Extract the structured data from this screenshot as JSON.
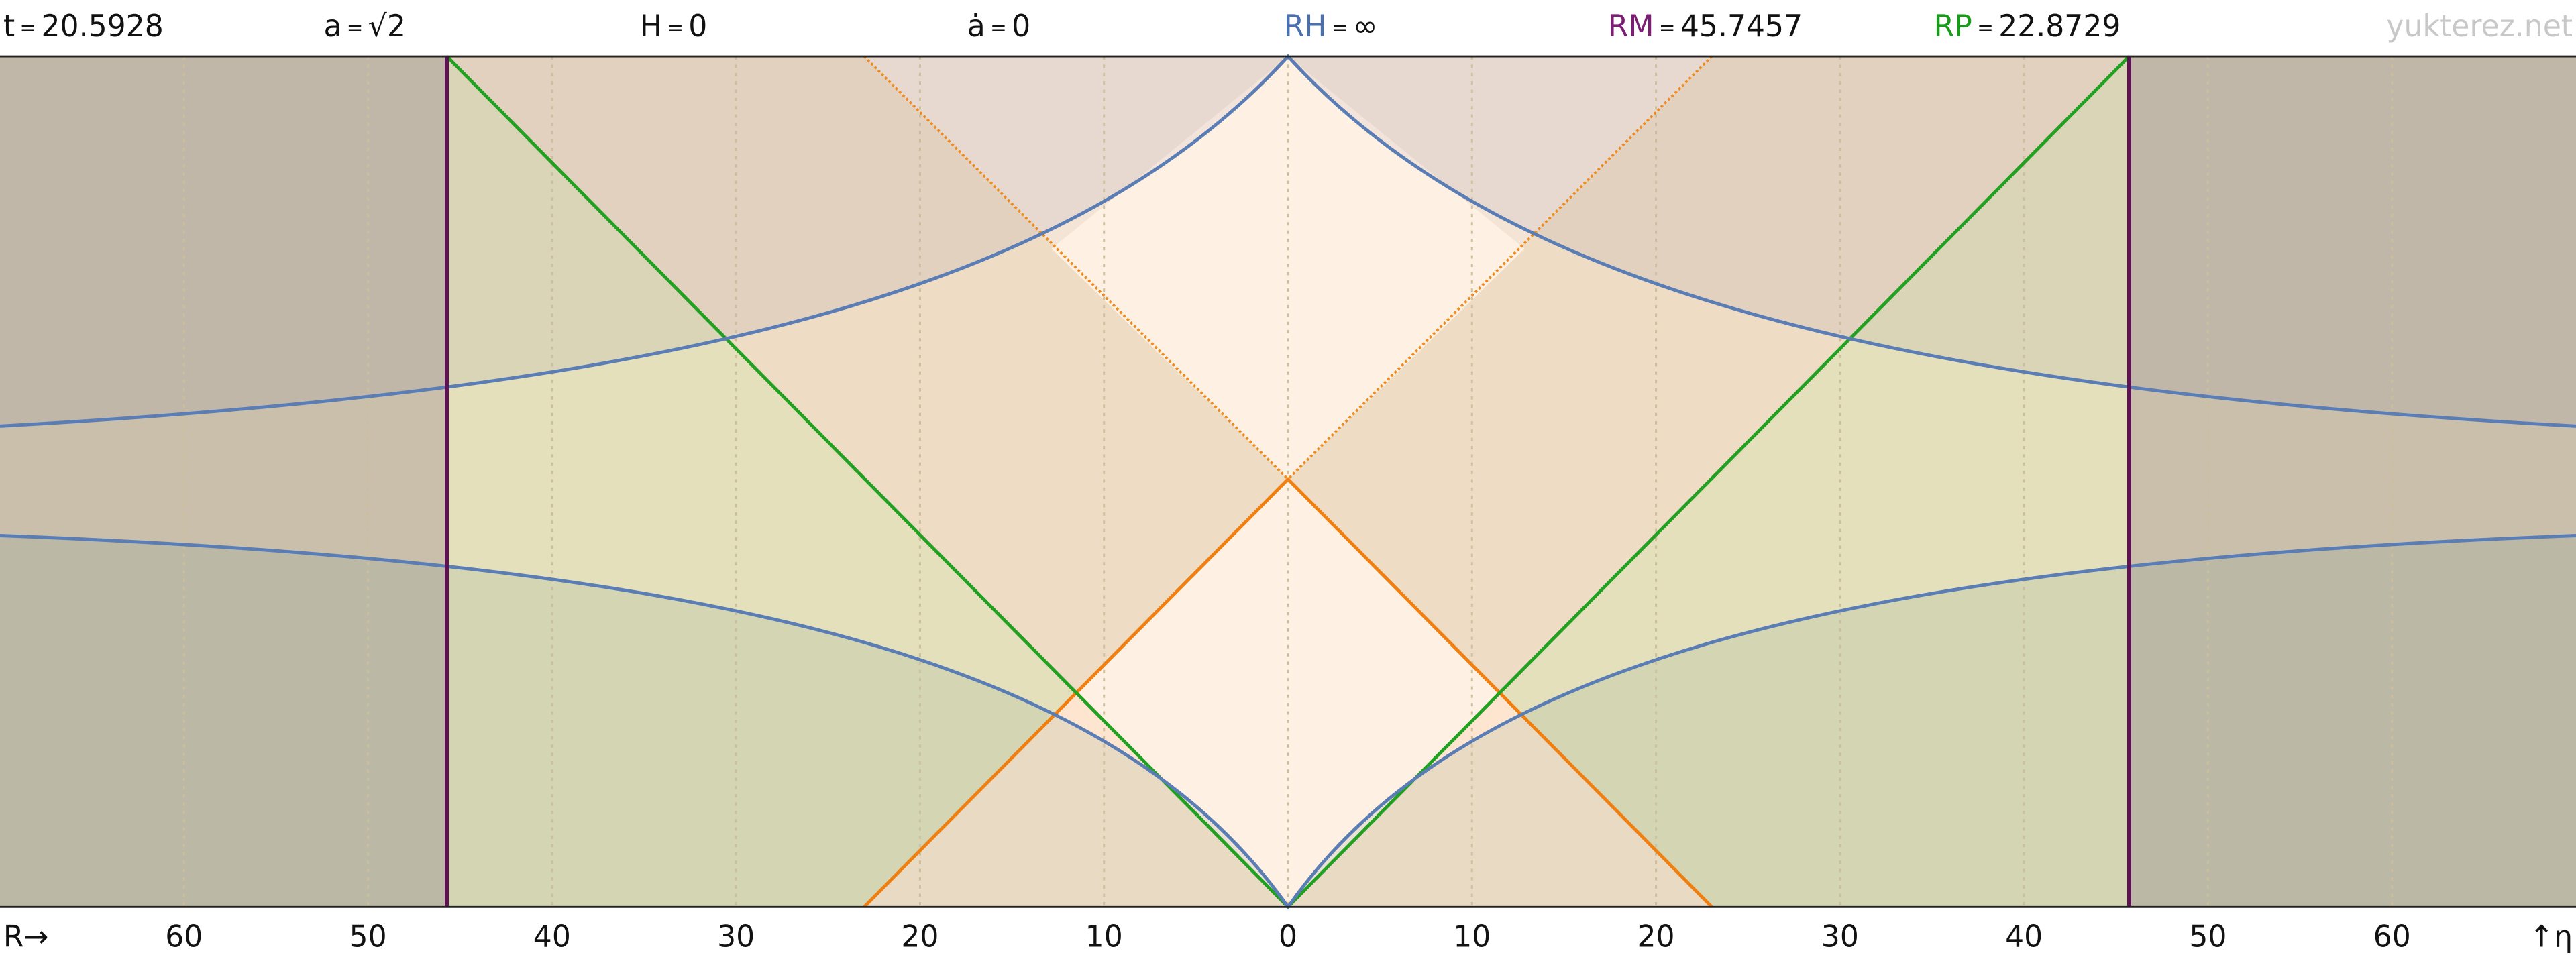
{
  "header": {
    "items": [
      {
        "label": "t",
        "eq": "=",
        "value": "20.5928"
      },
      {
        "label": "a",
        "eq": "=",
        "value": "√2"
      },
      {
        "label": "H",
        "eq": "=",
        "value": "0"
      },
      {
        "label": "ȧ",
        "eq": "=",
        "value": "0"
      },
      {
        "label": "RH",
        "eq": "=",
        "value": "∞"
      },
      {
        "label": "RM",
        "eq": "=",
        "value": "45.7457"
      },
      {
        "label": "RP",
        "eq": "=",
        "value": "22.8729"
      }
    ],
    "watermark": "yukterez.net"
  },
  "axis": {
    "start_label": "R→",
    "end_label": "↑η",
    "ticks": [
      "60",
      "50",
      "40",
      "30",
      "20",
      "10",
      "0",
      "10",
      "20",
      "30",
      "40",
      "50",
      "60"
    ]
  }
}
